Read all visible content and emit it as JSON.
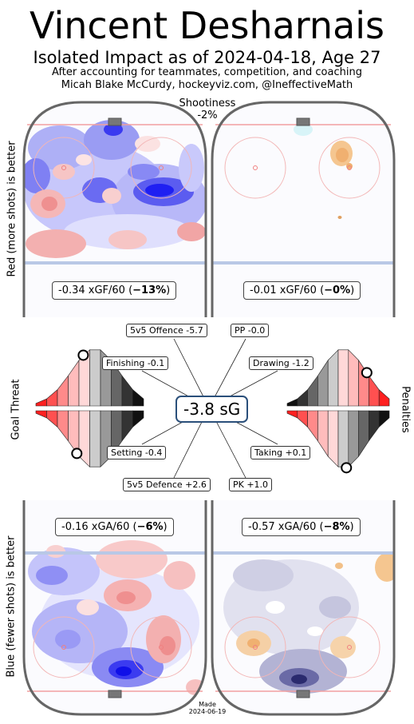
{
  "header": {
    "player_name": "Vincent Desharnais",
    "subtitle": "Isolated Impact as of 2024-04-18, Age 27",
    "note_line1": "After accounting for teammates, competition, and coaching",
    "note_line2": "Micah Blake McCurdy, hockeyviz.com, @IneffectiveMath"
  },
  "shootiness": {
    "label": "Shootiness",
    "value": "-2%"
  },
  "axis_labels": {
    "offence": "Red (more shots) is better",
    "defence": "Blue (fewer shots) is better",
    "goal_threat": "Goal Threat",
    "penalties": "Penalties"
  },
  "chart_data": {
    "type": "impact_dashboard",
    "title": "Vincent Desharnais",
    "subtitle": "Isolated Impact as of 2024-04-18, Age 27",
    "total": {
      "value": -3.8,
      "label": "-3.8 sG"
    },
    "rate_panels": [
      {
        "panel": "5v5 offence",
        "prefix": "-0.34 xGF/60 (",
        "pct": "−13%",
        "suffix": ")",
        "xg_per60": -0.34,
        "pct_value": -13
      },
      {
        "panel": "PP offence",
        "prefix": "-0.01 xGF/60 (",
        "pct": "−0%",
        "suffix": ")",
        "xg_per60": -0.01,
        "pct_value": 0
      },
      {
        "panel": "5v5 defence",
        "prefix": "-0.16 xGA/60 (",
        "pct": "−6%",
        "suffix": ")",
        "xg_per60": -0.16,
        "pct_value": -6
      },
      {
        "panel": "PK defence",
        "prefix": "-0.57 xGA/60 (",
        "pct": "−8%",
        "suffix": ")",
        "xg_per60": -0.57,
        "pct_value": -8
      }
    ],
    "components": [
      {
        "name": "5v5 Offence",
        "value": -5.7,
        "label": "5v5 Offence -5.7"
      },
      {
        "name": "PP",
        "value": -0.0,
        "label": "PP -0.0"
      },
      {
        "name": "Finishing",
        "value": -0.1,
        "label": "Finishing -0.1"
      },
      {
        "name": "Drawing",
        "value": -1.2,
        "label": "Drawing -1.2"
      },
      {
        "name": "Setting",
        "value": -0.4,
        "label": "Setting -0.4"
      },
      {
        "name": "Taking",
        "value": 0.1,
        "label": "Taking +0.1"
      },
      {
        "name": "5v5 Defence",
        "value": 2.6,
        "label": "5v5 Defence +2.6"
      },
      {
        "name": "PK",
        "value": 1.0,
        "label": "PK +1.0"
      }
    ],
    "distributions": {
      "finishing_percentile": 0.44,
      "setting_percentile": 0.38,
      "drawing_percentile": 0.22,
      "taking_percentile": 0.58
    }
  },
  "footer": {
    "made_label": "Made",
    "made_date": "2024-06-19"
  },
  "colors": {
    "rink_border": "#666666",
    "more_shots": "#ff0000",
    "fewer_shots": "#0000ff",
    "pk_fewer": "#2a2a6e",
    "pk_more": "#f5c690",
    "total_box_border": "#2a4f7a"
  }
}
